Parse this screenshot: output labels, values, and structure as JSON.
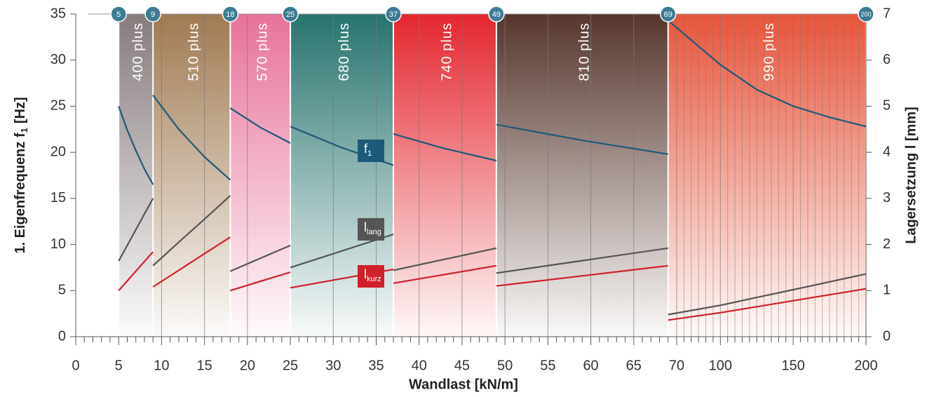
{
  "chart_data": {
    "type": "banded-line",
    "xlabel": "Wandlast [kN/m]",
    "ylabel": [
      "1. Eigenfrequenz f",
      "1",
      "[Hz]"
    ],
    "y2label": "Lagersetzung l [mm]",
    "xlim": [
      0,
      200
    ],
    "xticks": [
      0,
      5,
      10,
      15,
      20,
      25,
      30,
      35,
      40,
      45,
      50,
      55,
      60,
      65,
      70,
      100,
      150,
      200
    ],
    "ylim": [
      0,
      35
    ],
    "yticks": [
      0,
      5,
      10,
      15,
      20,
      25,
      30,
      35
    ],
    "y2lim": [
      0,
      7
    ],
    "y2ticks": [
      0,
      1,
      2,
      3,
      4,
      5,
      6,
      7
    ],
    "boundaries": [
      5,
      9,
      18,
      25,
      37,
      49,
      69,
      200
    ],
    "series": [
      {
        "name": "f",
        "sub": "1",
        "color": "#1d5a7a",
        "axis": "y"
      },
      {
        "name": "l",
        "sub": "lang",
        "color": "#555555",
        "axis": "y2"
      },
      {
        "name": "l",
        "sub": "kurz",
        "color": "#d0202a",
        "axis": "y2"
      }
    ],
    "bands": [
      {
        "name": "400 plus",
        "color": "#877c7d",
        "x": [
          5,
          6,
          7,
          8,
          9
        ],
        "values": [
          [
            25,
            22.4,
            20.2,
            18.2,
            16.5
          ],
          [
            1.64,
            1.98,
            2.32,
            2.66,
            3.0
          ],
          [
            1.0,
            1.21,
            1.42,
            1.63,
            1.84
          ]
        ]
      },
      {
        "name": "510 plus",
        "color": "#a07a52",
        "x": [
          9,
          12,
          15,
          18
        ],
        "values": [
          [
            26.2,
            22.5,
            19.5,
            17
          ],
          [
            1.54,
            2.05,
            2.55,
            3.06
          ],
          [
            1.08,
            1.44,
            1.8,
            2.16
          ]
        ]
      },
      {
        "name": "570 plus",
        "color": "#e8729a",
        "x": [
          18,
          21.5,
          25
        ],
        "values": [
          [
            24.8,
            22.7,
            21
          ],
          [
            1.42,
            1.7,
            1.98
          ],
          [
            1.0,
            1.2,
            1.4
          ]
        ]
      },
      {
        "name": "680 plus",
        "color": "#27736e",
        "x": [
          25,
          31,
          37
        ],
        "values": [
          [
            22.8,
            20.5,
            18.6
          ],
          [
            1.5,
            1.86,
            2.22
          ],
          [
            1.06,
            1.26,
            1.46
          ]
        ]
      },
      {
        "name": "740 plus",
        "color": "#e4262f",
        "x": [
          37,
          43,
          49
        ],
        "values": [
          [
            22,
            20.4,
            19.1
          ],
          [
            1.44,
            1.68,
            1.92
          ],
          [
            1.16,
            1.35,
            1.54
          ]
        ]
      },
      {
        "name": "810 plus",
        "color": "#56362c",
        "x": [
          49,
          59,
          69
        ],
        "values": [
          [
            23,
            21.3,
            19.8
          ],
          [
            1.38,
            1.65,
            1.92
          ],
          [
            1.1,
            1.32,
            1.54
          ]
        ]
      },
      {
        "name": "990 plus",
        "color": "#e9543a",
        "x": [
          69,
          100,
          125,
          150,
          175,
          200
        ],
        "values": [
          [
            34.3,
            29.5,
            26.8,
            25,
            23.8,
            22.8
          ],
          [
            0.48,
            0.68,
            0.85,
            1.02,
            1.19,
            1.36
          ],
          [
            0.36,
            0.52,
            0.65,
            0.78,
            0.91,
            1.04
          ]
        ]
      }
    ]
  }
}
